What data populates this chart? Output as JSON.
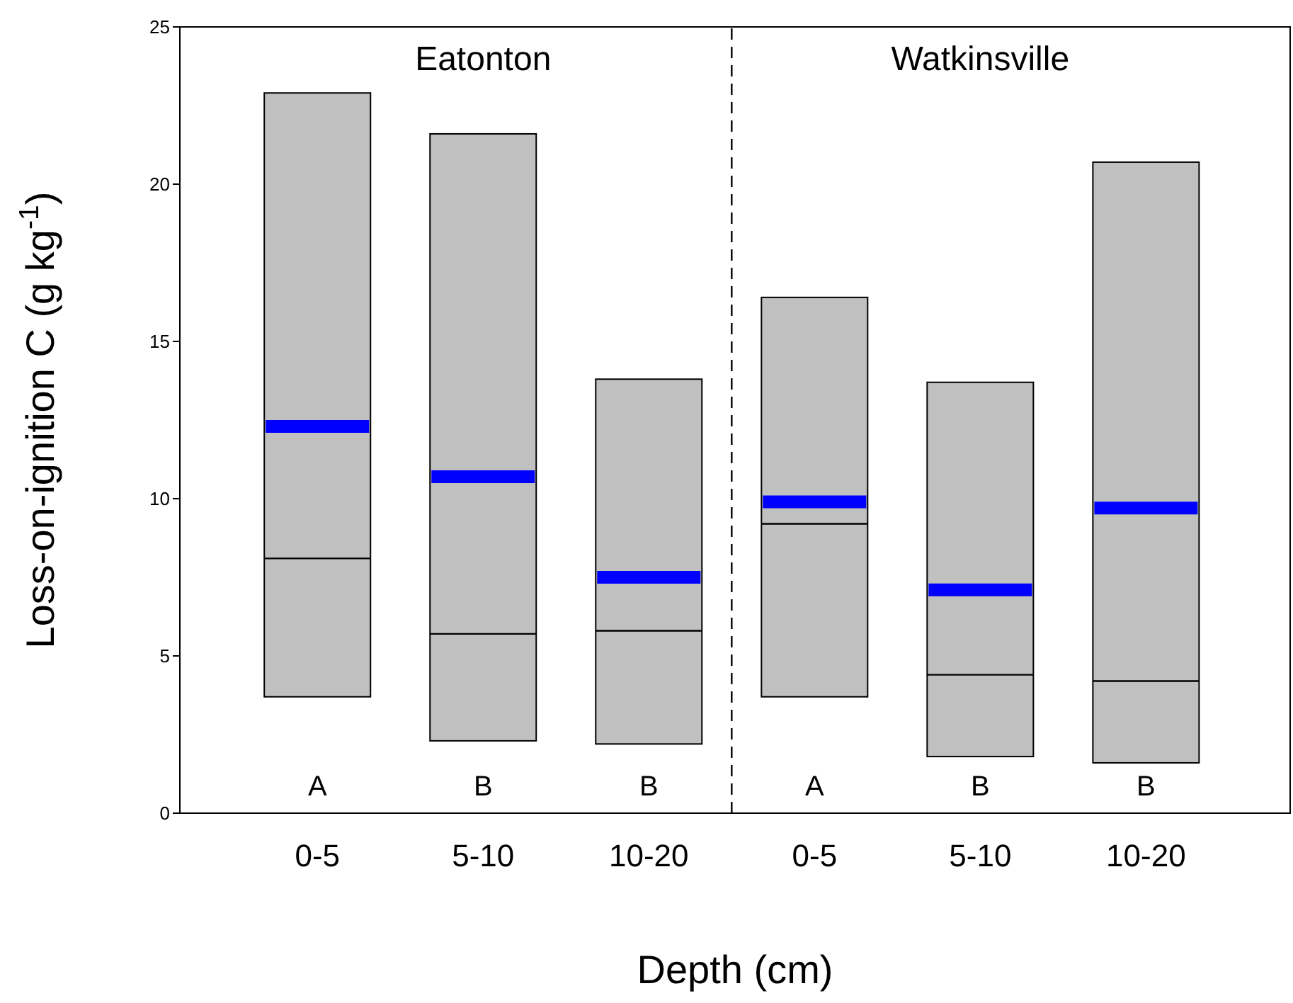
{
  "chart_data": {
    "type": "box",
    "xlabel": "Depth (cm)",
    "ylabel": "Loss-on-ignition C (g kg$^{-1}$)",
    "categories": [
      "0-5",
      "5-10",
      "10-20",
      "0-5",
      "5-10",
      "10-20"
    ],
    "series": [
      {
        "color": "#c0c0c0",
        "boxes": [
          {
            "low": 3.7,
            "q1": 3.7,
            "median": 8.1,
            "q3": 22.9,
            "high": 22.9,
            "mean": 12.3
          },
          {
            "low": 2.3,
            "q1": 2.3,
            "median": 5.7,
            "q3": 21.6,
            "high": 21.6,
            "mean": 10.7
          },
          {
            "low": 2.2,
            "q1": 2.2,
            "median": 5.8,
            "q3": 13.8,
            "high": 13.8,
            "mean": 7.5
          },
          {
            "low": 3.7,
            "q1": 3.7,
            "median": 9.2,
            "q3": 16.4,
            "high": 16.4,
            "mean": 9.9
          },
          {
            "low": 1.8,
            "q1": 1.8,
            "median": 4.4,
            "q3": 13.7,
            "high": 13.7,
            "mean": 7.1
          },
          {
            "low": 1.6,
            "q1": 1.6,
            "median": 4.2,
            "q3": 20.7,
            "high": 20.7,
            "mean": 9.7
          }
        ]
      }
    ],
    "ylim": [
      0,
      25
    ],
    "yticks": [
      0,
      5,
      10,
      15,
      20,
      25
    ],
    "grid": false,
    "legend": false,
    "annotations": [
      "Eatonton",
      "Watkinsville",
      "A",
      "B",
      "B",
      "A",
      "B",
      "B"
    ]
  }
}
